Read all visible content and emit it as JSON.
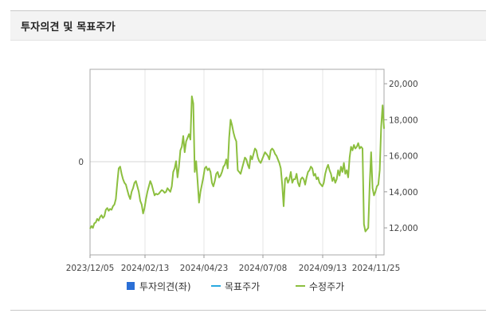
{
  "panel": {
    "title": "투자의견 및 목표주가"
  },
  "chart_data": {
    "type": "line",
    "title": "투자의견 및 목표주가",
    "left_axis": {
      "ticks": [
        "0"
      ]
    },
    "right_axis": {
      "ylim": [
        10500,
        20800
      ],
      "ticks": [
        12000,
        14000,
        16000,
        18000,
        20000
      ],
      "tick_labels": [
        "12,000",
        "14,000",
        "16,000",
        "18,000",
        "20,000"
      ]
    },
    "x_ticks": [
      "2023/12/05",
      "2024/02/13",
      "2024/04/23",
      "2024/07/08",
      "2024/09/13",
      "2024/11/25"
    ],
    "legend": [
      {
        "name": "투자의견(좌)",
        "color": "#2b6fd6",
        "marker": "square"
      },
      {
        "name": "목표주가",
        "color": "#29a9e0",
        "marker": "line"
      },
      {
        "name": "수정주가",
        "color": "#8cbf3f",
        "marker": "line"
      }
    ],
    "series": [
      {
        "name": "수정주가",
        "color": "#8cbf3f",
        "values": [
          11950,
          12100,
          12000,
          12250,
          12300,
          12500,
          12400,
          12600,
          12700,
          12550,
          12650,
          13000,
          13100,
          12950,
          13050,
          13000,
          13200,
          13300,
          13600,
          14500,
          15300,
          15400,
          15000,
          14700,
          14500,
          14400,
          14100,
          13800,
          13600,
          14000,
          14200,
          14500,
          14600,
          14300,
          14000,
          13500,
          13300,
          12800,
          13100,
          13600,
          14000,
          14300,
          14600,
          14400,
          14100,
          13800,
          13900,
          13850,
          13900,
          14000,
          14100,
          14050,
          13950,
          14000,
          14200,
          14100,
          14000,
          14300,
          15100,
          15300,
          15700,
          14800,
          15400,
          16300,
          16500,
          17100,
          16200,
          16800,
          17000,
          17200,
          16900,
          19300,
          18900,
          15100,
          15700,
          14600,
          13400,
          14000,
          14400,
          14800,
          15300,
          15400,
          15200,
          15300,
          15100,
          14500,
          14300,
          14600,
          15000,
          15100,
          14800,
          14900,
          15100,
          15400,
          15500,
          15800,
          15300,
          17000,
          18000,
          17700,
          17300,
          17000,
          16800,
          15200,
          15100,
          15000,
          15300,
          15600,
          15900,
          15800,
          15500,
          15300,
          16000,
          15800,
          16100,
          16400,
          16300,
          15900,
          15700,
          15600,
          15800,
          16000,
          16200,
          16100,
          16000,
          15800,
          16300,
          16400,
          16300,
          16100,
          16000,
          15800,
          15600,
          15300,
          14400,
          13200,
          14700,
          14800,
          14500,
          14700,
          15100,
          14500,
          14700,
          14700,
          15000,
          14500,
          14300,
          14700,
          14800,
          14700,
          14400,
          14800,
          15100,
          15200,
          15400,
          15300,
          14900,
          15000,
          14700,
          14800,
          14500,
          14400,
          14300,
          14500,
          15000,
          15300,
          15500,
          15200,
          15000,
          14600,
          14800,
          14500,
          14700,
          15200,
          14900,
          15400,
          15100,
          15600,
          15000,
          15200,
          14800,
          15900,
          16500,
          16300,
          16600,
          16400,
          16500,
          16700,
          16400,
          16500,
          16400,
          12200,
          11800,
          11900,
          12000,
          14400,
          16200,
          14200,
          13800,
          14000,
          14300,
          14400,
          15200,
          17600,
          18800,
          17500
        ]
      }
    ]
  }
}
